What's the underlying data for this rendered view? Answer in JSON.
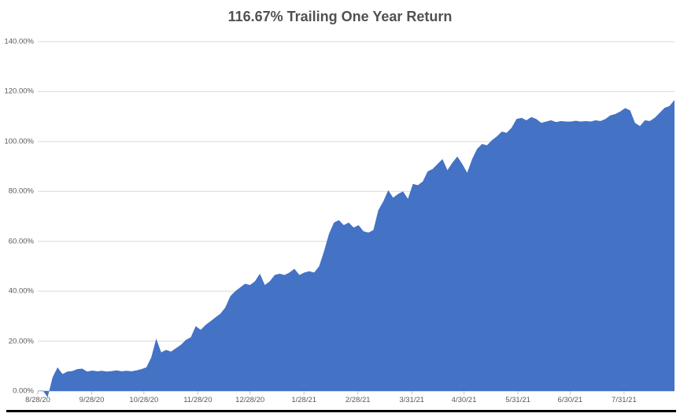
{
  "title": "116.67% Trailing One Year Return",
  "colors": {
    "area_fill": "#4472C4",
    "gridline": "#D9D9D9",
    "axis_line": "#BFBFBF",
    "axis_label_text": "#595959",
    "title_text": "#515151",
    "background": "#FFFFFF",
    "window_edge": "#000000"
  },
  "chart_data": {
    "type": "area",
    "title": "116.67% Trailing One Year Return",
    "series_name": "Trailing One Year Return",
    "final_value_pct": 116.67,
    "xlabel": "",
    "ylabel": "",
    "grid": true,
    "legend": false,
    "ylim": [
      0,
      140
    ],
    "y_tick_values": [
      0,
      20,
      40,
      60,
      80,
      100,
      120,
      140
    ],
    "y_tick_labels": [
      "0.00%",
      "20.00%",
      "40.00%",
      "60.00%",
      "80.00%",
      "100.00%",
      "120.00%",
      "140.00%"
    ],
    "x_tick_labels": [
      "8/28/20",
      "9/28/20",
      "10/28/20",
      "11/28/20",
      "12/28/20",
      "1/28/21",
      "2/28/21",
      "3/31/21",
      "4/30/21",
      "5/31/21",
      "6/30/21",
      "7/31/21"
    ],
    "x_tick_day_offsets": [
      0,
      31,
      61,
      92,
      122,
      153,
      184,
      215,
      245,
      276,
      306,
      337
    ],
    "x_total_days": 366,
    "values_pct": [
      0.1,
      0.2,
      -2.5,
      5.5,
      9.5,
      6.8,
      7.8,
      8.0,
      8.8,
      9.0,
      7.8,
      8.2,
      7.9,
      8.1,
      7.8,
      8.0,
      8.3,
      7.9,
      8.1,
      7.9,
      8.3,
      8.8,
      9.5,
      13.5,
      21.0,
      15.5,
      16.5,
      15.8,
      17.2,
      18.5,
      20.5,
      21.5,
      26.0,
      24.5,
      26.5,
      28.0,
      29.5,
      31.0,
      33.5,
      38.0,
      40.0,
      41.5,
      43.0,
      42.5,
      44.0,
      47.0,
      42.5,
      44.0,
      46.5,
      47.0,
      46.5,
      47.5,
      49.0,
      46.5,
      47.5,
      48.0,
      47.5,
      50.0,
      56.0,
      63.0,
      67.5,
      68.5,
      66.5,
      67.5,
      65.5,
      66.5,
      64.0,
      63.5,
      64.5,
      72.5,
      76.0,
      80.5,
      77.5,
      79.0,
      80.0,
      77.0,
      83.0,
      82.5,
      84.0,
      88.0,
      89.0,
      91.0,
      93.0,
      88.5,
      91.5,
      94.0,
      91.0,
      87.5,
      93.0,
      97.0,
      99.0,
      98.5,
      100.5,
      102.0,
      104.0,
      103.5,
      105.5,
      109.0,
      109.5,
      108.5,
      109.8,
      109.0,
      107.5,
      108.0,
      108.5,
      107.8,
      108.2,
      108.0,
      108.0,
      108.3,
      108.0,
      108.2,
      108.0,
      108.5,
      108.2,
      109.0,
      110.5,
      111.0,
      112.0,
      113.4,
      112.5,
      107.5,
      106.2,
      108.5,
      108.2,
      109.5,
      111.5,
      113.5,
      114.2,
      116.67
    ]
  }
}
